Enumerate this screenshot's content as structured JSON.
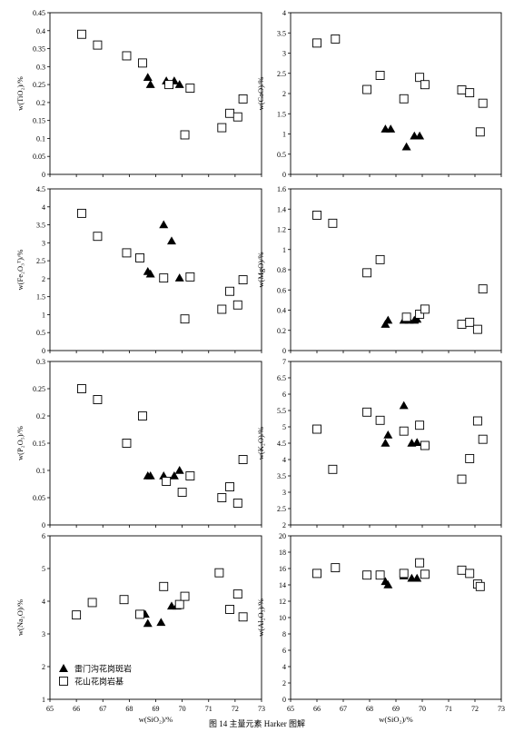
{
  "figure": {
    "caption": "图 14 主量元素 Harker 图解",
    "legend": [
      {
        "marker": "triangle",
        "label": "雷门沟花岗斑岩"
      },
      {
        "marker": "square",
        "label": "花山花岗岩基"
      }
    ]
  },
  "chart_data": [
    {
      "type": "scatter",
      "id": "tio2",
      "ylabel": "w(TiO₂)/%",
      "xlabel": "",
      "xlim": [
        65,
        73
      ],
      "ylim": [
        0,
        0.45
      ],
      "yticks": [
        "0",
        "0.05",
        "0.1",
        "0.15",
        "0.2",
        "0.25",
        "0.3",
        "0.35",
        "0.4",
        "0.45"
      ],
      "xticks": [],
      "series": [
        {
          "name": "雷门沟花岗斑岩",
          "marker": "triangle",
          "x": [
            68.7,
            68.8,
            69.4,
            69.7,
            69.9
          ],
          "y": [
            0.27,
            0.25,
            0.26,
            0.26,
            0.25
          ]
        },
        {
          "name": "花山花岗岩基",
          "marker": "square",
          "x": [
            66.2,
            66.8,
            67.9,
            68.5,
            69.5,
            70.1,
            70.3,
            71.5,
            71.8,
            72.1,
            72.3
          ],
          "y": [
            0.39,
            0.36,
            0.33,
            0.31,
            0.25,
            0.11,
            0.24,
            0.13,
            0.17,
            0.16,
            0.21
          ]
        }
      ]
    },
    {
      "type": "scatter",
      "id": "cao",
      "ylabel": "w(CaO)/%",
      "xlabel": "",
      "xlim": [
        65,
        73
      ],
      "ylim": [
        0,
        4
      ],
      "yticks": [
        "0",
        "0.5",
        "1",
        "1.5",
        "2",
        "2.5",
        "3",
        "3.5",
        "4"
      ],
      "xticks": [],
      "series": [
        {
          "name": "雷门沟花岗斑岩",
          "marker": "triangle",
          "x": [
            68.6,
            68.8,
            69.4,
            69.7,
            69.9
          ],
          "y": [
            1.12,
            1.12,
            0.68,
            0.95,
            0.95
          ]
        },
        {
          "name": "花山花岗岩基",
          "marker": "square",
          "x": [
            66.0,
            66.7,
            67.9,
            68.4,
            69.3,
            69.9,
            70.1,
            71.5,
            71.8,
            72.2,
            72.3
          ],
          "y": [
            3.25,
            3.35,
            2.1,
            2.45,
            1.87,
            2.4,
            2.22,
            2.09,
            2.02,
            1.05,
            1.76
          ]
        }
      ]
    },
    {
      "type": "scatter",
      "id": "fe2o3",
      "ylabel": "w(Fe₂O₃ᵀ)/%",
      "xlabel": "",
      "xlim": [
        65,
        73
      ],
      "ylim": [
        0,
        4.5
      ],
      "yticks": [
        "0",
        "0.5",
        "1",
        "1.5",
        "2",
        "2.5",
        "3",
        "3.5",
        "4",
        "4.5"
      ],
      "xticks": [],
      "series": [
        {
          "name": "雷门沟花岗斑岩",
          "marker": "triangle",
          "x": [
            68.7,
            68.8,
            69.3,
            69.6,
            69.9
          ],
          "y": [
            2.2,
            2.13,
            3.5,
            3.05,
            2.02
          ]
        },
        {
          "name": "花山花岗岩基",
          "marker": "square",
          "x": [
            66.2,
            66.8,
            67.9,
            68.4,
            69.3,
            70.1,
            70.3,
            71.5,
            71.8,
            72.1,
            72.3
          ],
          "y": [
            3.82,
            3.18,
            2.72,
            2.58,
            2.02,
            0.88,
            2.05,
            1.15,
            1.65,
            1.27,
            1.97
          ]
        }
      ]
    },
    {
      "type": "scatter",
      "id": "mgo",
      "ylabel": "w(MgO)/%",
      "xlabel": "",
      "xlim": [
        65,
        73
      ],
      "ylim": [
        0,
        1.6
      ],
      "yticks": [
        "0",
        "0.2",
        "0.4",
        "0.6",
        "0.8",
        "1",
        "1.2",
        "1.4",
        "1.6"
      ],
      "xticks": [],
      "series": [
        {
          "name": "雷门沟花岗斑岩",
          "marker": "triangle",
          "x": [
            68.6,
            68.7,
            69.3,
            69.5,
            69.7,
            69.8
          ],
          "y": [
            0.26,
            0.3,
            0.3,
            0.3,
            0.3,
            0.31
          ]
        },
        {
          "name": "花山花岗岩基",
          "marker": "square",
          "x": [
            66.0,
            66.6,
            67.9,
            68.4,
            69.4,
            69.9,
            70.1,
            71.5,
            71.8,
            72.1,
            72.3
          ],
          "y": [
            1.34,
            1.26,
            0.77,
            0.9,
            0.33,
            0.36,
            0.41,
            0.26,
            0.28,
            0.21,
            0.61
          ]
        }
      ]
    },
    {
      "type": "scatter",
      "id": "p2o5",
      "ylabel": "w(P₂O₅)/%",
      "xlabel": "",
      "xlim": [
        65,
        73
      ],
      "ylim": [
        0,
        0.3
      ],
      "yticks": [
        "0",
        "0.05",
        "0.1",
        "0.15",
        "0.2",
        "0.25",
        "0.3"
      ],
      "xticks": [],
      "series": [
        {
          "name": "雷门沟花岗斑岩",
          "marker": "triangle",
          "x": [
            68.7,
            68.8,
            69.3,
            69.7,
            69.9
          ],
          "y": [
            0.09,
            0.09,
            0.09,
            0.09,
            0.1
          ]
        },
        {
          "name": "花山花岗岩基",
          "marker": "square",
          "x": [
            66.2,
            66.8,
            67.9,
            68.5,
            69.4,
            70.0,
            70.3,
            71.5,
            71.8,
            72.1,
            72.3
          ],
          "y": [
            0.25,
            0.23,
            0.15,
            0.2,
            0.08,
            0.06,
            0.09,
            0.05,
            0.07,
            0.04,
            0.12
          ]
        }
      ]
    },
    {
      "type": "scatter",
      "id": "k2o",
      "ylabel": "w(K₂O)/%",
      "xlabel": "",
      "xlim": [
        65,
        73
      ],
      "ylim": [
        2,
        7
      ],
      "yticks": [
        "2",
        "2.5",
        "3",
        "3.5",
        "4",
        "4.5",
        "5",
        "5.5",
        "6",
        "6.5",
        "7"
      ],
      "xticks": [],
      "series": [
        {
          "name": "雷门沟花岗斑岩",
          "marker": "triangle",
          "x": [
            68.6,
            68.7,
            69.3,
            69.6,
            69.8
          ],
          "y": [
            4.5,
            4.75,
            5.65,
            4.5,
            4.52
          ]
        },
        {
          "name": "花山花岗岩基",
          "marker": "square",
          "x": [
            66.0,
            66.6,
            67.9,
            68.4,
            69.3,
            69.9,
            70.1,
            71.5,
            71.8,
            72.1,
            72.3
          ],
          "y": [
            4.93,
            3.7,
            5.45,
            5.2,
            4.87,
            5.05,
            4.43,
            3.4,
            4.03,
            5.18,
            4.62
          ]
        }
      ]
    },
    {
      "type": "scatter",
      "id": "na2o",
      "ylabel": "w(Na₂O)/%",
      "xlabel": "w(SiO₂)/%",
      "xlim": [
        65,
        73
      ],
      "ylim": [
        1,
        6
      ],
      "yticks": [
        "1",
        "2",
        "3",
        "4",
        "5",
        "6"
      ],
      "xticks": [
        "65",
        "66",
        "67",
        "68",
        "69",
        "70",
        "71",
        "72",
        "73"
      ],
      "series": [
        {
          "name": "雷门沟花岗斑岩",
          "marker": "triangle",
          "x": [
            68.6,
            68.7,
            69.2,
            69.6,
            69.8
          ],
          "y": [
            3.6,
            3.32,
            3.35,
            3.85,
            3.85
          ]
        },
        {
          "name": "花山花岗岩基",
          "marker": "square",
          "x": [
            66.0,
            66.6,
            67.8,
            68.4,
            69.3,
            69.9,
            70.1,
            71.4,
            71.8,
            72.1,
            72.3
          ],
          "y": [
            3.58,
            3.96,
            4.05,
            3.6,
            4.45,
            3.9,
            4.15,
            4.87,
            3.75,
            4.22,
            3.52
          ]
        }
      ]
    },
    {
      "type": "scatter",
      "id": "al2o3",
      "ylabel": "w(Al₂O₃)/%",
      "xlabel": "w(SiO₂)/%",
      "xlim": [
        65,
        73
      ],
      "ylim": [
        0,
        20
      ],
      "yticks": [
        "0",
        "2",
        "4",
        "6",
        "8",
        "10",
        "12",
        "14",
        "16",
        "18",
        "20"
      ],
      "xticks": [
        "65",
        "66",
        "67",
        "68",
        "69",
        "70",
        "71",
        "72",
        "73"
      ],
      "series": [
        {
          "name": "雷门沟花岗斑岩",
          "marker": "triangle",
          "x": [
            68.6,
            68.7,
            69.3,
            69.6,
            69.8
          ],
          "y": [
            14.4,
            14.0,
            15.1,
            14.8,
            14.8
          ]
        },
        {
          "name": "花山花岗岩基",
          "marker": "square",
          "x": [
            66.0,
            66.7,
            67.9,
            68.4,
            69.3,
            69.9,
            70.1,
            71.5,
            71.8,
            72.1,
            72.2
          ],
          "y": [
            15.4,
            16.1,
            15.2,
            15.2,
            15.4,
            16.7,
            15.3,
            15.8,
            15.4,
            14.1,
            13.8
          ]
        }
      ]
    }
  ]
}
